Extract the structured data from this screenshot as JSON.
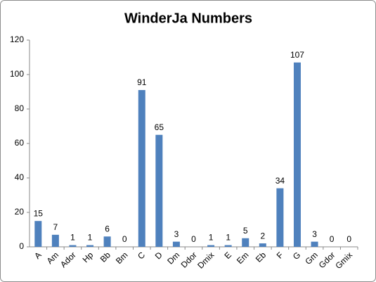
{
  "chart_data": {
    "type": "bar",
    "title": "WinderJa Numbers",
    "categories": [
      "A",
      "Am",
      "Ador",
      "Hp",
      "Bb",
      "Bm",
      "C",
      "D",
      "Dm",
      "Ddor",
      "Dmix",
      "E",
      "Em",
      "Eb",
      "F",
      "G",
      "Gm",
      "Gdor",
      "Gmix"
    ],
    "values": [
      15,
      7,
      1,
      1,
      6,
      0,
      91,
      65,
      3,
      0,
      1,
      1,
      5,
      2,
      34,
      107,
      3,
      0,
      0
    ],
    "color": "#4f81bd",
    "ylim": [
      0,
      120
    ],
    "yticks": [
      0,
      20,
      40,
      60,
      80,
      100,
      120
    ],
    "grid": false
  }
}
